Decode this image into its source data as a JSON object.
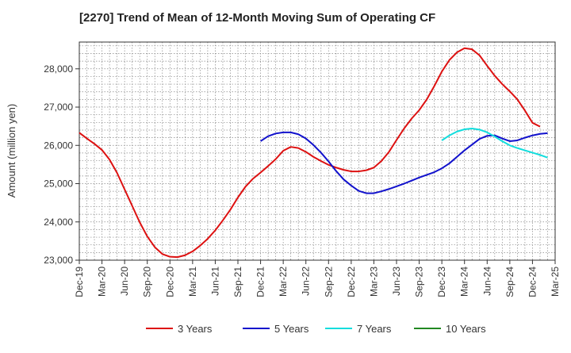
{
  "chart_data": {
    "type": "line",
    "title": "[2270]  Trend of Mean of 12-Month Moving Sum of Operating CF",
    "xlabel": "",
    "ylabel": "Amount (million yen)",
    "ylim": [
      23000,
      28700
    ],
    "yticks": [
      23000,
      24000,
      25000,
      26000,
      27000,
      28000
    ],
    "ytick_labels": [
      "23,000",
      "24,000",
      "25,000",
      "26,000",
      "27,000",
      "28,000"
    ],
    "x_start": "Dec-19",
    "x_tick_labels": [
      "Dec-19",
      "Mar-20",
      "Jun-20",
      "Sep-20",
      "Dec-20",
      "Mar-21",
      "Jun-21",
      "Sep-21",
      "Dec-21",
      "Mar-22",
      "Jun-22",
      "Sep-22",
      "Dec-22",
      "Mar-23",
      "Jun-23",
      "Sep-23",
      "Dec-23",
      "Mar-24",
      "Jun-24",
      "Sep-24",
      "Dec-24",
      "Mar-25"
    ],
    "grid": true,
    "legend_position": "bottom",
    "series": [
      {
        "name": "3 Years",
        "color": "#dd1111",
        "start_index": 0,
        "values": [
          26330,
          26180,
          26040,
          25880,
          25630,
          25280,
          24850,
          24420,
          23990,
          23620,
          23340,
          23160,
          23090,
          23080,
          23130,
          23230,
          23380,
          23560,
          23780,
          24040,
          24320,
          24640,
          24920,
          25130,
          25290,
          25460,
          25640,
          25860,
          25960,
          25930,
          25830,
          25700,
          25590,
          25490,
          25420,
          25360,
          25320,
          25320,
          25350,
          25420,
          25590,
          25830,
          26140,
          26440,
          26700,
          26920,
          27200,
          27550,
          27930,
          28230,
          28430,
          28540,
          28510,
          28350,
          28080,
          27820,
          27600,
          27410,
          27200,
          26910,
          26590,
          26490
        ]
      },
      {
        "name": "5 Years",
        "color": "#1111cc",
        "start_index": 24,
        "values": [
          26110,
          26240,
          26310,
          26340,
          26340,
          26290,
          26180,
          26010,
          25810,
          25580,
          25330,
          25110,
          24950,
          24810,
          24750,
          24750,
          24800,
          24860,
          24930,
          25000,
          25080,
          25160,
          25230,
          25300,
          25400,
          25530,
          25700,
          25870,
          26020,
          26170,
          26250,
          26260,
          26180,
          26110,
          26130,
          26200,
          26260,
          26300,
          26320
        ]
      },
      {
        "name": "7 Years",
        "color": "#11dddd",
        "start_index": 48,
        "values": [
          26130,
          26260,
          26360,
          26420,
          26440,
          26410,
          26340,
          26230,
          26110,
          26000,
          25930,
          25870,
          25810,
          25750,
          25680
        ]
      },
      {
        "name": "10 Years",
        "color": "#228822",
        "start_index": 0,
        "values": []
      }
    ]
  }
}
